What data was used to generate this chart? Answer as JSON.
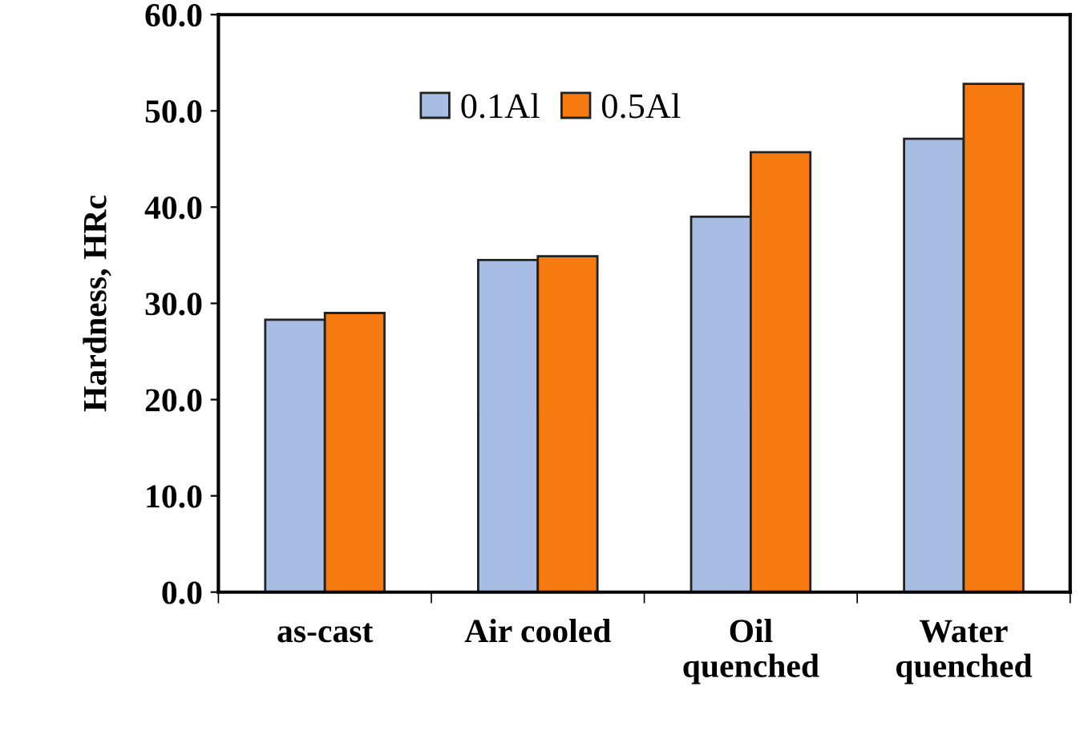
{
  "chart_data": {
    "type": "bar",
    "ylabel": "Hardness, HRc",
    "categories": [
      "as-cast",
      "Air cooled",
      "Oil\nquenched",
      "Water\nquenched"
    ],
    "series": [
      {
        "name": "0.1Al",
        "color": "#a8bde3",
        "values": [
          28.3,
          34.5,
          39.0,
          47.1
        ]
      },
      {
        "name": "0.5Al",
        "color": "#f77a10",
        "values": [
          29.0,
          34.9,
          45.7,
          52.8
        ]
      }
    ],
    "ylim": [
      0,
      60
    ],
    "yticks": [
      {
        "value": 0,
        "label": "0.0"
      },
      {
        "value": 10,
        "label": "10.0"
      },
      {
        "value": 20,
        "label": "20.0"
      },
      {
        "value": 30,
        "label": "30.0"
      },
      {
        "value": 40,
        "label": "40.0"
      },
      {
        "value": 50,
        "label": "50.0"
      },
      {
        "value": 60,
        "label": "60.0"
      }
    ],
    "legend": "top left",
    "grid": false
  }
}
